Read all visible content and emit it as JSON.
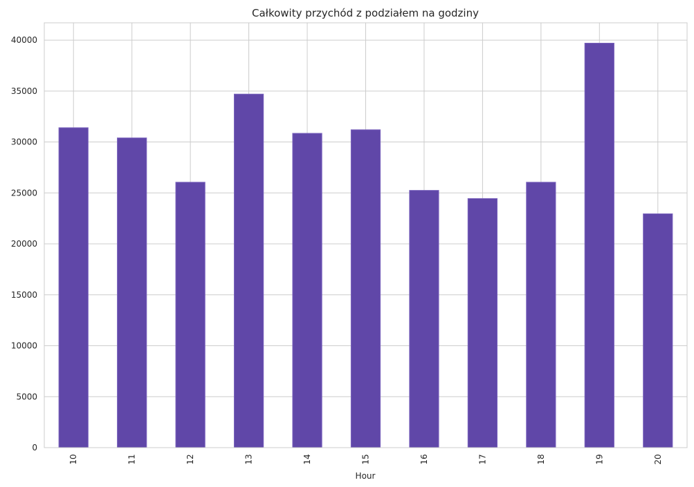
{
  "chart_data": {
    "type": "bar",
    "title": "Całkowity przychód z podziałem na godziny",
    "xlabel": "Hour",
    "ylabel": "",
    "categories": [
      "10",
      "11",
      "12",
      "13",
      "14",
      "15",
      "16",
      "17",
      "18",
      "19",
      "20"
    ],
    "values": [
      31400,
      30400,
      26050,
      34700,
      30850,
      31200,
      25250,
      24450,
      26050,
      39700,
      22950
    ],
    "ylim": [
      0,
      41700
    ],
    "yticks": [
      "0",
      "5000",
      "10000",
      "15000",
      "20000",
      "25000",
      "30000",
      "35000",
      "40000"
    ],
    "grid": true,
    "legend": "none",
    "colors": {
      "bar": "#6047a8",
      "bar_edge": "#7a63bd",
      "grid": "#cccccc",
      "axes_edge": "#cccccc",
      "text": "#262626"
    }
  }
}
